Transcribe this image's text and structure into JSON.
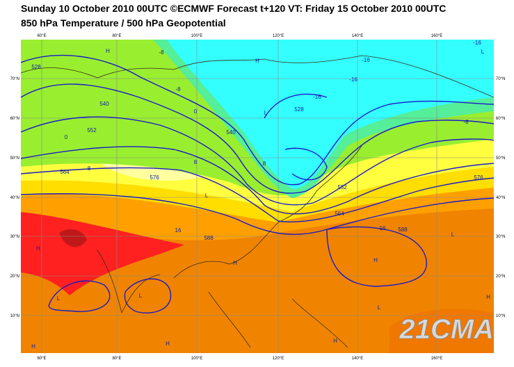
{
  "header": {
    "title": "Sunday 10 October 2010 00UTC ©ECMWF Forecast t+120 VT: Friday 15 October 2010 00UTC",
    "subtitle": "850 hPa Temperature / 500 hPa Geopotential"
  },
  "map": {
    "lon_labels": [
      "60°E",
      "80°E",
      "100°E",
      "120°E",
      "140°E",
      "160°E"
    ],
    "lat_labels": [
      "70°N",
      "60°N",
      "50°N",
      "40°N",
      "30°N",
      "20°N",
      "10°N"
    ],
    "labels": [
      "H",
      "-8",
      "H",
      "-16",
      "-16",
      "-16",
      "L",
      "-8",
      "0",
      "-16",
      "L",
      "0",
      "8",
      "8",
      "L",
      "-8",
      "8",
      "H",
      "16",
      "16",
      "H",
      "H",
      "L",
      "L",
      "L",
      "H",
      "H",
      "H",
      "H",
      "L",
      "528",
      "540",
      "552",
      "564",
      "576",
      "588",
      "528",
      "540",
      "552",
      "564",
      "576",
      "588"
    ]
  },
  "watermark": "21CMA"
}
